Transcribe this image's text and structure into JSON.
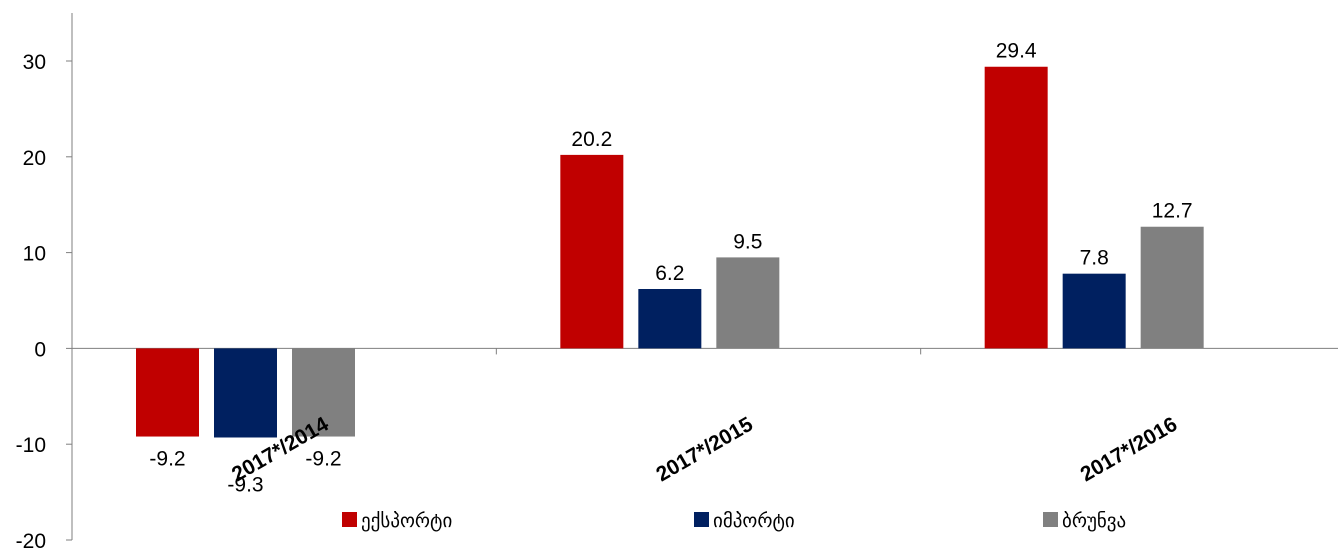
{
  "chart_data": {
    "type": "bar",
    "title": "",
    "xlabel": "",
    "ylabel": "",
    "categories": [
      "2017*/2014",
      "2017*/2015",
      "2017*/2016"
    ],
    "series": [
      {
        "name": "ექსპორტი",
        "color": "#c00000",
        "values": [
          -9.2,
          20.2,
          29.4
        ]
      },
      {
        "name": "იმპორტი",
        "color": "#002060",
        "values": [
          -9.3,
          6.2,
          7.8
        ]
      },
      {
        "name": "ბრუნვა",
        "color": "#808080",
        "values": [
          -9.2,
          9.5,
          12.7
        ]
      }
    ],
    "ylim": [
      -20,
      30
    ],
    "yticks": [
      -20,
      -10,
      0,
      10,
      20,
      30
    ],
    "grid": false,
    "legend_position": "bottom",
    "data_labels": true
  }
}
